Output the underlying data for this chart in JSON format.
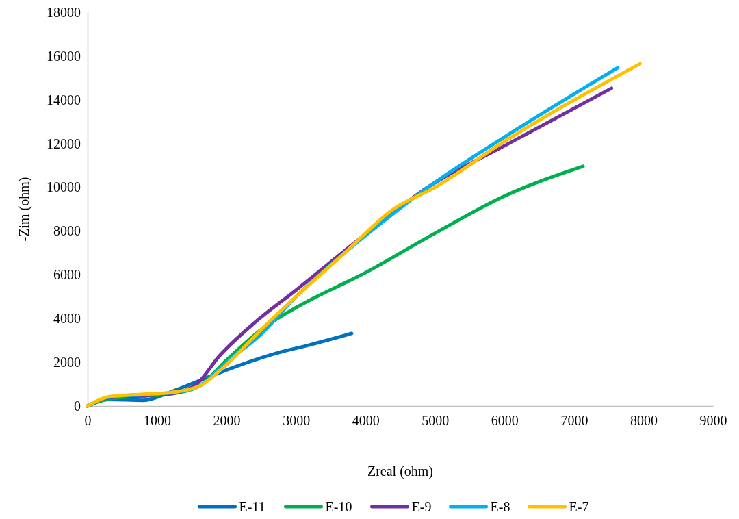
{
  "chart_data": {
    "type": "line",
    "xlabel": "Zreal (ohm)",
    "ylabel": "-Zim (ohm)",
    "xlim": [
      0,
      9000
    ],
    "xticks": [
      0,
      1000,
      2000,
      3000,
      4000,
      5000,
      6000,
      7000,
      8000,
      9000
    ],
    "ylim": [
      0,
      18000
    ],
    "yticks": [
      0,
      2000,
      4000,
      6000,
      8000,
      10000,
      12000,
      14000,
      16000,
      18000
    ],
    "grid": false,
    "legend": "bottom",
    "marker": "none",
    "line_style": "solid",
    "series": [
      {
        "name": "E-11",
        "color": "#0070c0",
        "x": [
          0,
          300,
          800,
          1200,
          1600,
          2000,
          2700,
          3200,
          3800
        ],
        "values": [
          0,
          300,
          260,
          650,
          1150,
          1650,
          2400,
          2800,
          3320
        ]
      },
      {
        "name": "E-10",
        "color": "#00b050",
        "x": [
          0,
          300,
          800,
          1200,
          1600,
          2000,
          2500,
          3000,
          4000,
          5000,
          6000,
          7130
        ],
        "values": [
          0,
          330,
          450,
          560,
          900,
          2100,
          3500,
          4500,
          6100,
          7900,
          9600,
          10960
        ]
      },
      {
        "name": "E-9",
        "color": "#7030a0",
        "x": [
          0,
          300,
          800,
          1200,
          1550,
          1900,
          2400,
          3000,
          3700,
          4300,
          4800,
          6000,
          7540
        ],
        "values": [
          0,
          380,
          480,
          560,
          950,
          2300,
          3800,
          5300,
          7100,
          8600,
          9800,
          11900,
          14530
        ]
      },
      {
        "name": "E-8",
        "color": "#00b0f0",
        "x": [
          0,
          300,
          800,
          1200,
          1600,
          2000,
          2500,
          3000,
          3700,
          4400,
          4900,
          6000,
          7630
        ],
        "values": [
          0,
          400,
          520,
          600,
          900,
          2000,
          3300,
          5000,
          7000,
          8800,
          10000,
          12300,
          15470
        ]
      },
      {
        "name": "E-7",
        "color": "#ffc000",
        "x": [
          0,
          300,
          800,
          1200,
          1600,
          2000,
          2500,
          3000,
          3700,
          4400,
          5000,
          6000,
          7950
        ],
        "values": [
          0,
          420,
          540,
          620,
          900,
          1900,
          3500,
          5000,
          7000,
          9000,
          10000,
          12100,
          15650
        ]
      }
    ]
  }
}
